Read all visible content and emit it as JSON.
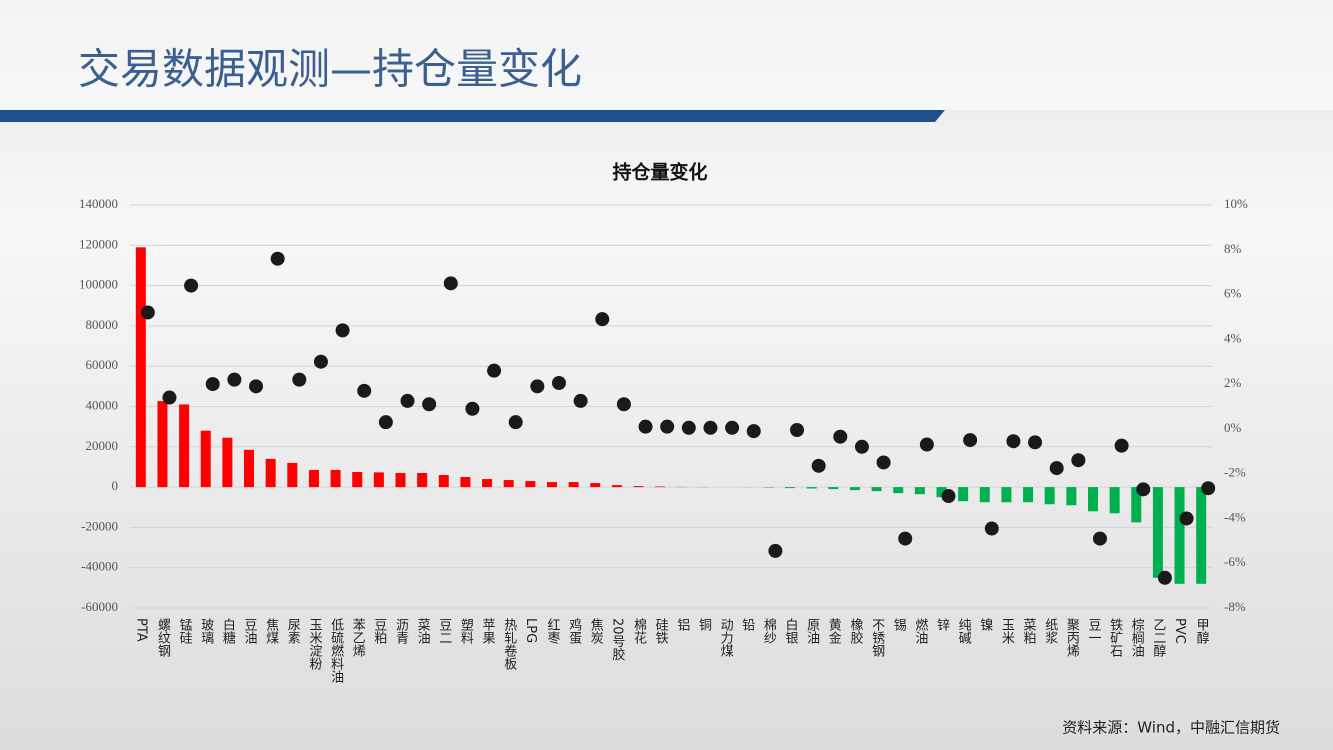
{
  "header": {
    "title": "交易数据观测—持仓量变化"
  },
  "source": "资料来源：Wind，中融汇信期货",
  "chart_data": {
    "type": "bar",
    "title": "持仓量变化",
    "categories": [
      "PTA",
      "螺纹钢",
      "锰硅",
      "玻璃",
      "白糖",
      "豆油",
      "焦煤",
      "尿素",
      "玉米淀粉",
      "低硫燃料油",
      "苯乙烯",
      "豆粕",
      "沥青",
      "菜油",
      "豆二",
      "塑料",
      "苹果",
      "热轧卷板",
      "LPG",
      "红枣",
      "鸡蛋",
      "焦炭",
      "20号胶",
      "棉花",
      "硅铁",
      "铝",
      "铜",
      "动力煤",
      "铅",
      "棉纱",
      "白银",
      "原油",
      "黄金",
      "橡胶",
      "不锈钢",
      "锡",
      "燃油",
      "锌",
      "纯碱",
      "镍",
      "玉米",
      "菜粕",
      "纸浆",
      "聚丙烯",
      "豆一",
      "铁矿石",
      "棕榈油",
      "乙二醇",
      "PVC",
      "甲醇"
    ],
    "series": [
      {
        "type": "bar",
        "color": "#ff0000",
        "negative_color": "#00b050",
        "values": [
          119000,
          42700,
          41000,
          28000,
          24500,
          18500,
          14000,
          12000,
          8500,
          8500,
          7500,
          7300,
          7000,
          7000,
          6000,
          5000,
          4000,
          3500,
          3000,
          2500,
          2500,
          2000,
          1000,
          500,
          300,
          100,
          50,
          0,
          -50,
          -200,
          -500,
          -700,
          -1000,
          -1500,
          -2000,
          -3000,
          -3500,
          -5000,
          -7000,
          -7500,
          -7500,
          -7500,
          -8500,
          -9000,
          -12000,
          -13000,
          -17500,
          -45000,
          -48000,
          -48000
        ]
      },
      {
        "type": "scatter",
        "axis": "y2",
        "color": "#1a1a1a",
        "values": [
          5.2,
          1.4,
          6.4,
          2.0,
          2.2,
          1.9,
          7.6,
          2.2,
          3.0,
          4.4,
          1.7,
          0.3,
          1.25,
          1.1,
          6.5,
          0.9,
          2.6,
          0.3,
          1.9,
          2.05,
          1.25,
          4.9,
          1.1,
          0.1,
          0.1,
          0.05,
          0.05,
          0.05,
          -0.1,
          -5.45,
          -0.05,
          -1.65,
          -0.35,
          -0.8,
          -1.5,
          -4.9,
          -0.7,
          -3.0,
          -0.5,
          -4.45,
          -0.55,
          -0.6,
          -1.75,
          -1.4,
          -4.9,
          -0.75,
          -2.7,
          -6.65,
          -4.0,
          -2.65
        ]
      }
    ],
    "ylim": [
      -60000,
      140000
    ],
    "yticks": [
      -60000,
      -40000,
      -20000,
      0,
      20000,
      40000,
      60000,
      80000,
      100000,
      120000,
      140000
    ],
    "y2lim": [
      -8,
      10
    ],
    "y2ticks": [
      {
        "value": -8,
        "label": "-8%"
      },
      {
        "value": -6,
        "label": "-6%"
      },
      {
        "value": -4,
        "label": "-4%"
      },
      {
        "value": -2,
        "label": "-2%"
      },
      {
        "value": 0,
        "label": "0%"
      },
      {
        "value": 2,
        "label": "2%"
      },
      {
        "value": 4,
        "label": "4%"
      },
      {
        "value": 6,
        "label": "6%"
      },
      {
        "value": 8,
        "label": "8%"
      },
      {
        "value": 10,
        "label": "10%"
      }
    ],
    "grid": true
  }
}
